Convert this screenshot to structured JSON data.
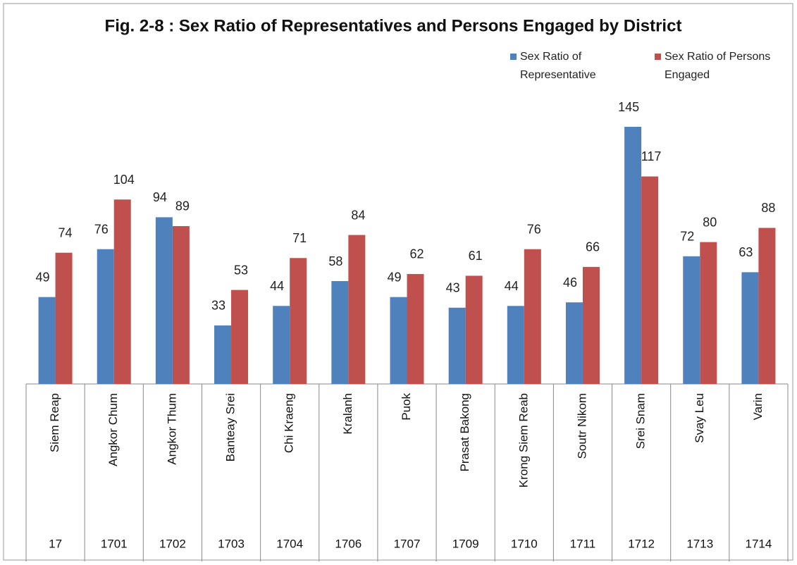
{
  "chart_data": {
    "type": "bar",
    "title": "Fig. 2-8 : Sex Ratio of Representatives and Persons Engaged by District",
    "categories": [
      "Siem Reap",
      "Angkor Chum",
      "Angkor Thum",
      "Banteay Srei",
      "Chi Kraeng",
      "Kralanh",
      "Puok",
      "Prasat Bakong",
      "Krong Siem Reab",
      "Soutr Nikom",
      "Srei Snam",
      "Svay Leu",
      "Varin"
    ],
    "codes": [
      "17",
      "1701",
      "1702",
      "1703",
      "1704",
      "1706",
      "1707",
      "1709",
      "1710",
      "1711",
      "1712",
      "1713",
      "1714"
    ],
    "series": [
      {
        "name": "Sex Ratio of Representative",
        "color": "#4f81bd",
        "values": [
          49,
          76,
          94,
          33,
          44,
          58,
          49,
          43,
          44,
          46,
          145,
          72,
          63
        ]
      },
      {
        "name": "Sex Ratio of Persons Engaged",
        "color": "#c0504d",
        "values": [
          74,
          104,
          89,
          53,
          71,
          84,
          62,
          61,
          76,
          66,
          117,
          80,
          88
        ]
      }
    ],
    "legend": "top-right"
  }
}
